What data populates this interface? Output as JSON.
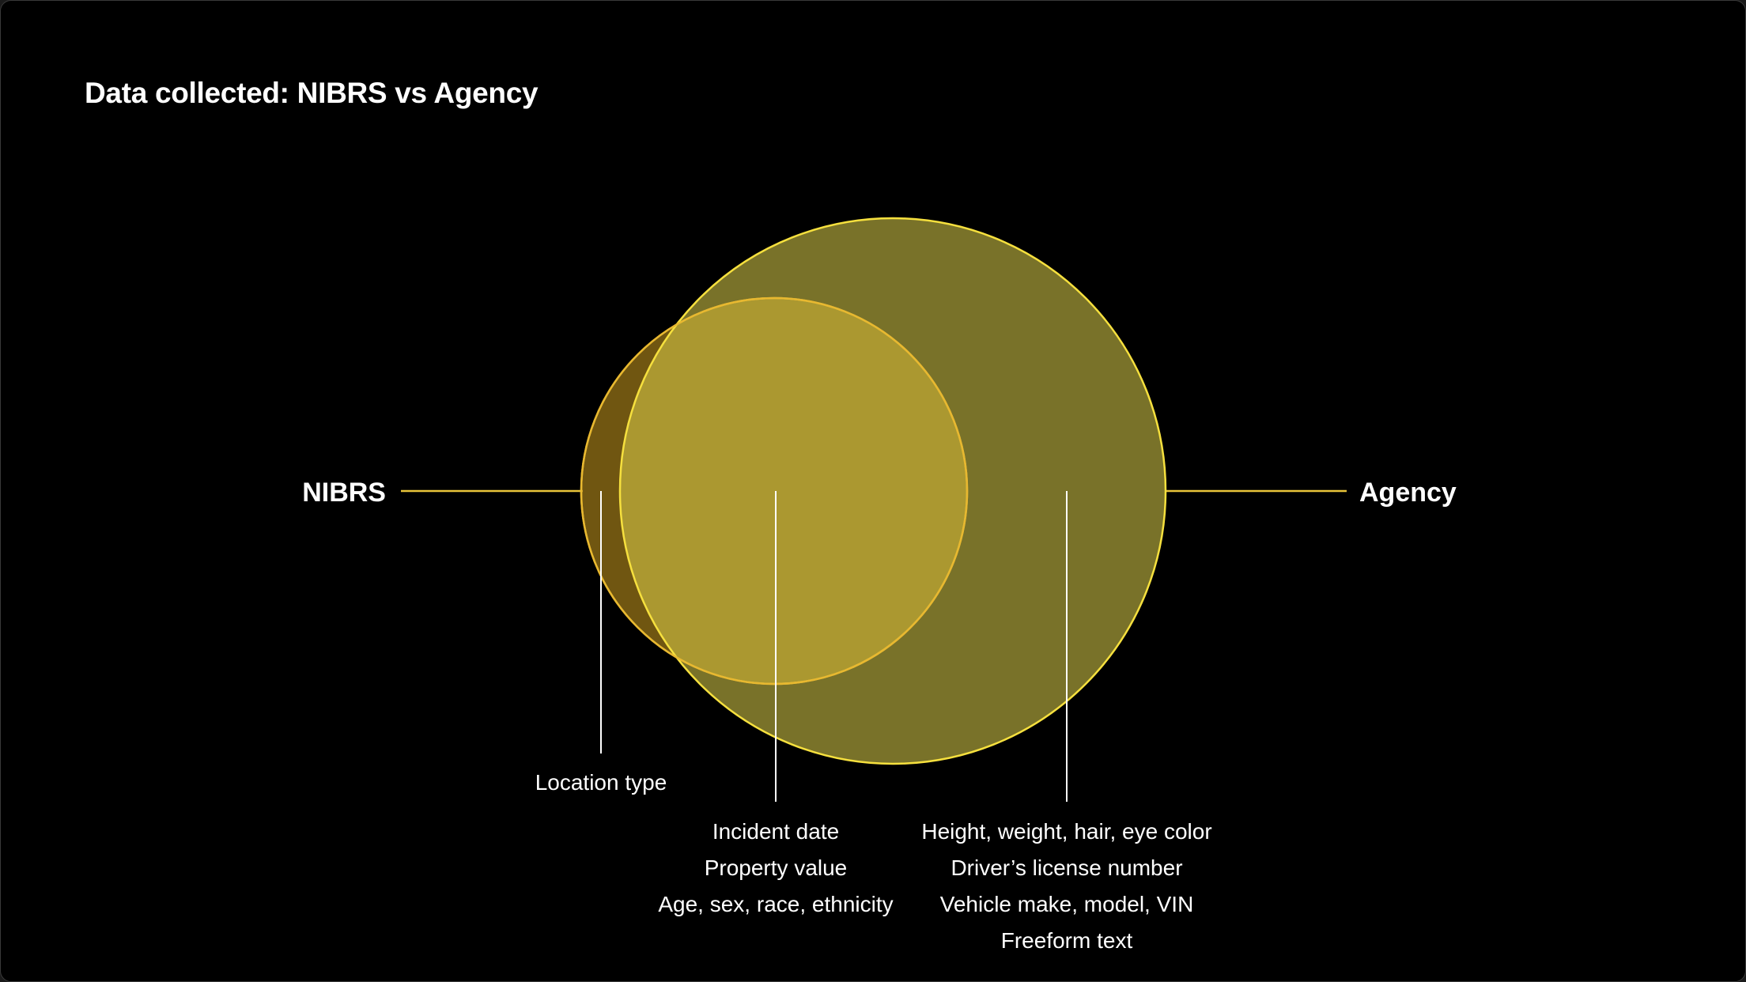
{
  "title": "Data collected: NIBRS vs Agency",
  "sets": {
    "nibrs": {
      "label": "NIBRS"
    },
    "agency": {
      "label": "Agency"
    }
  },
  "regions": {
    "nibrs_only": {
      "items": [
        "Location type"
      ]
    },
    "overlap": {
      "items": [
        "Incident date",
        "Property value",
        "Age, sex, race, ethnicity"
      ]
    },
    "agency_only": {
      "items": [
        "Height, weight, hair, eye color",
        "Driver’s license number",
        "Vehicle make, model, VIN",
        "Freeform text"
      ]
    }
  },
  "colors": {
    "background": "#000000",
    "nibrs_fill": "#c9a22a",
    "agency_fill": "#a89a2a",
    "outline": "#f2d43a",
    "leader_line": "#ffffff",
    "text": "#ffffff"
  }
}
